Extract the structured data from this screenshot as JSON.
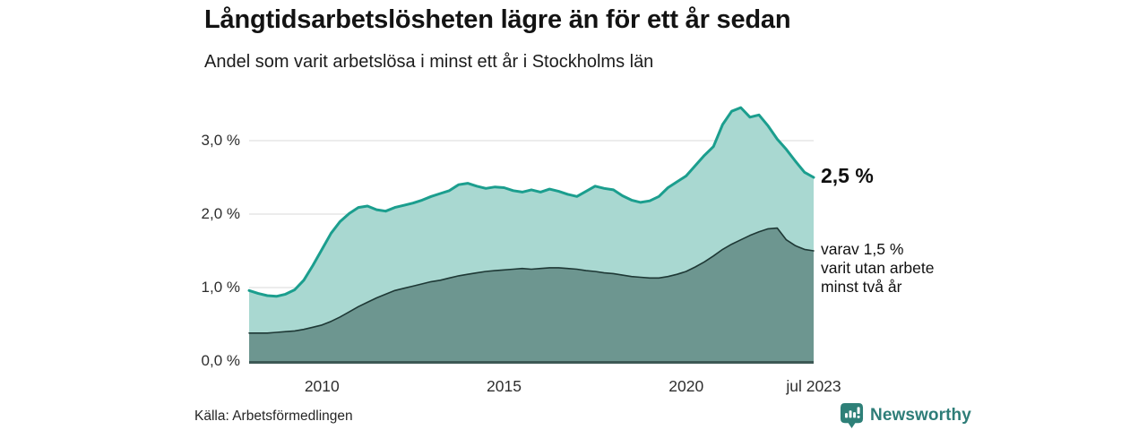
{
  "header": {
    "title": "Långtidsarbetslösheten lägre än för ett år sedan",
    "subtitle": "Andel som varit arbetslösa i minst ett år i Stockholms län"
  },
  "colors": {
    "total_line": "#1b9e8e",
    "total_fill": "#a9d8d1",
    "two_years_line": "#1e3835",
    "two_years_fill": "#6d9690",
    "grid": "#d9d9d9",
    "axis": "#3d5955",
    "text": "#151515",
    "brand_teal": "#2e7d78"
  },
  "chart_data": {
    "type": "area",
    "title": "Långtidsarbetslösheten lägre än för ett år sedan",
    "subtitle": "Andel som varit arbetslösa i minst ett år i Stockholms län",
    "x_range": [
      2008,
      2023.5
    ],
    "y_range": [
      0,
      3.5
    ],
    "grid": true,
    "legend": "none (direct labels at line ends)",
    "y_ticks": [
      {
        "value": 0,
        "label": "0,0 %"
      },
      {
        "value": 1,
        "label": "1,0 %"
      },
      {
        "value": 2,
        "label": "2,0 %"
      },
      {
        "value": 3,
        "label": "3,0 %"
      }
    ],
    "x_ticks": [
      {
        "value": 2010,
        "label": "2010"
      },
      {
        "value": 2015,
        "label": "2015"
      },
      {
        "value": 2020,
        "label": "2020"
      },
      {
        "value": 2023.5,
        "label": "jul 2023"
      }
    ],
    "series": [
      {
        "name": "Andel arbetslösa minst ett år",
        "key": "total",
        "line_color": "#1b9e8e",
        "fill_color": "#a9d8d1",
        "end_value": 2.5,
        "points": [
          [
            2008,
            0.96
          ],
          [
            2008.25,
            0.92
          ],
          [
            2008.5,
            0.89
          ],
          [
            2008.75,
            0.88
          ],
          [
            2009,
            0.91
          ],
          [
            2009.25,
            0.97
          ],
          [
            2009.5,
            1.1
          ],
          [
            2009.75,
            1.3
          ],
          [
            2010,
            1.52
          ],
          [
            2010.25,
            1.74
          ],
          [
            2010.5,
            1.9
          ],
          [
            2010.75,
            2.01
          ],
          [
            2011,
            2.09
          ],
          [
            2011.25,
            2.11
          ],
          [
            2011.5,
            2.06
          ],
          [
            2011.75,
            2.04
          ],
          [
            2012,
            2.09
          ],
          [
            2012.25,
            2.12
          ],
          [
            2012.5,
            2.15
          ],
          [
            2012.75,
            2.19
          ],
          [
            2013,
            2.24
          ],
          [
            2013.25,
            2.28
          ],
          [
            2013.5,
            2.32
          ],
          [
            2013.75,
            2.4
          ],
          [
            2014,
            2.42
          ],
          [
            2014.25,
            2.38
          ],
          [
            2014.5,
            2.35
          ],
          [
            2014.75,
            2.37
          ],
          [
            2015,
            2.36
          ],
          [
            2015.25,
            2.32
          ],
          [
            2015.5,
            2.3
          ],
          [
            2015.75,
            2.33
          ],
          [
            2016,
            2.3
          ],
          [
            2016.25,
            2.34
          ],
          [
            2016.5,
            2.31
          ],
          [
            2016.75,
            2.27
          ],
          [
            2017,
            2.24
          ],
          [
            2017.25,
            2.31
          ],
          [
            2017.5,
            2.38
          ],
          [
            2017.75,
            2.35
          ],
          [
            2018,
            2.33
          ],
          [
            2018.25,
            2.25
          ],
          [
            2018.5,
            2.19
          ],
          [
            2018.75,
            2.16
          ],
          [
            2019,
            2.18
          ],
          [
            2019.25,
            2.24
          ],
          [
            2019.5,
            2.36
          ],
          [
            2019.75,
            2.44
          ],
          [
            2020,
            2.52
          ],
          [
            2020.25,
            2.66
          ],
          [
            2020.5,
            2.8
          ],
          [
            2020.75,
            2.92
          ],
          [
            2021,
            3.22
          ],
          [
            2021.25,
            3.4
          ],
          [
            2021.5,
            3.45
          ],
          [
            2021.75,
            3.32
          ],
          [
            2022,
            3.35
          ],
          [
            2022.25,
            3.2
          ],
          [
            2022.5,
            3.02
          ],
          [
            2022.75,
            2.88
          ],
          [
            2023,
            2.72
          ],
          [
            2023.25,
            2.57
          ],
          [
            2023.5,
            2.5
          ]
        ]
      },
      {
        "name": "varav utan arbete minst två år",
        "key": "two_years",
        "line_color": "#1e3835",
        "fill_color": "#6d9690",
        "end_value": 1.5,
        "points": [
          [
            2008,
            0.38
          ],
          [
            2008.25,
            0.38
          ],
          [
            2008.5,
            0.38
          ],
          [
            2008.75,
            0.39
          ],
          [
            2009,
            0.4
          ],
          [
            2009.25,
            0.41
          ],
          [
            2009.5,
            0.43
          ],
          [
            2009.75,
            0.46
          ],
          [
            2010,
            0.49
          ],
          [
            2010.25,
            0.54
          ],
          [
            2010.5,
            0.6
          ],
          [
            2010.75,
            0.67
          ],
          [
            2011,
            0.74
          ],
          [
            2011.25,
            0.8
          ],
          [
            2011.5,
            0.86
          ],
          [
            2011.75,
            0.91
          ],
          [
            2012,
            0.96
          ],
          [
            2012.25,
            0.99
          ],
          [
            2012.5,
            1.02
          ],
          [
            2012.75,
            1.05
          ],
          [
            2013,
            1.08
          ],
          [
            2013.25,
            1.1
          ],
          [
            2013.5,
            1.13
          ],
          [
            2013.75,
            1.16
          ],
          [
            2014,
            1.18
          ],
          [
            2014.25,
            1.2
          ],
          [
            2014.5,
            1.22
          ],
          [
            2014.75,
            1.23
          ],
          [
            2015,
            1.24
          ],
          [
            2015.25,
            1.25
          ],
          [
            2015.5,
            1.26
          ],
          [
            2015.75,
            1.25
          ],
          [
            2016,
            1.26
          ],
          [
            2016.25,
            1.27
          ],
          [
            2016.5,
            1.27
          ],
          [
            2016.75,
            1.26
          ],
          [
            2017,
            1.25
          ],
          [
            2017.25,
            1.23
          ],
          [
            2017.5,
            1.22
          ],
          [
            2017.75,
            1.2
          ],
          [
            2018,
            1.19
          ],
          [
            2018.25,
            1.17
          ],
          [
            2018.5,
            1.15
          ],
          [
            2018.75,
            1.14
          ],
          [
            2019,
            1.13
          ],
          [
            2019.25,
            1.13
          ],
          [
            2019.5,
            1.15
          ],
          [
            2019.75,
            1.18
          ],
          [
            2020,
            1.22
          ],
          [
            2020.25,
            1.28
          ],
          [
            2020.5,
            1.35
          ],
          [
            2020.75,
            1.43
          ],
          [
            2021,
            1.52
          ],
          [
            2021.25,
            1.59
          ],
          [
            2021.5,
            1.65
          ],
          [
            2021.75,
            1.71
          ],
          [
            2022,
            1.76
          ],
          [
            2022.25,
            1.8
          ],
          [
            2022.5,
            1.81
          ],
          [
            2022.75,
            1.65
          ],
          [
            2023,
            1.57
          ],
          [
            2023.25,
            1.52
          ],
          [
            2023.5,
            1.5
          ]
        ]
      }
    ],
    "annotations": {
      "total_end_label": "2,5 %",
      "dark_label_lines": [
        "varav 1,5 %",
        "varit utan arbete",
        "minst två år"
      ]
    }
  },
  "footer": {
    "source": "Källa: Arbetsförmedlingen",
    "brand": "Newsworthy",
    "brand_icon": "bar-chart-speech-bubble"
  }
}
